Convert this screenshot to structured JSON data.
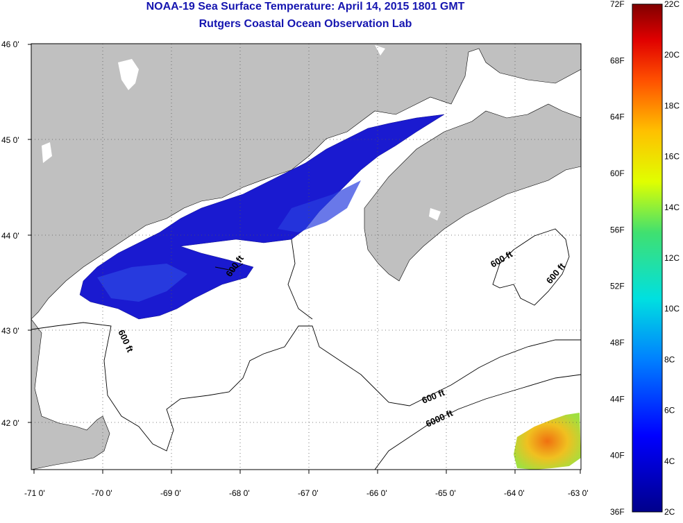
{
  "title": "NOAA-19 Sea Surface Temperature:  April 14, 2015 1801 GMT",
  "subtitle": "Rutgers Coastal Ocean Observation Lab",
  "lat_ticks": [
    "46 0'",
    "45 0'",
    "44 0'",
    "43 0'",
    "42 0'"
  ],
  "lon_ticks": [
    "-71 0'",
    "-70 0'",
    "-69 0'",
    "-68 0'",
    "-67 0'",
    "-66 0'",
    "-65 0'",
    "-64 0'",
    "-63 0'"
  ],
  "contour_labels": [
    "600 ft",
    "600 ft",
    "600 ft",
    "600 ft",
    "600 ft",
    "6000 ft"
  ],
  "colorbar": {
    "fahrenheit": [
      "72F",
      "68F",
      "64F",
      "60F",
      "56F",
      "52F",
      "48F",
      "44F",
      "40F",
      "36F"
    ],
    "celsius": [
      "22C",
      "20C",
      "18C",
      "16C",
      "14C",
      "12C",
      "10C",
      "8C",
      "6C",
      "4C",
      "2C"
    ]
  },
  "colors": {
    "title": "#1515b0",
    "land": "#c0c0c0",
    "cold_water": "#1a1ad0",
    "warm_water": "#f0b020"
  }
}
